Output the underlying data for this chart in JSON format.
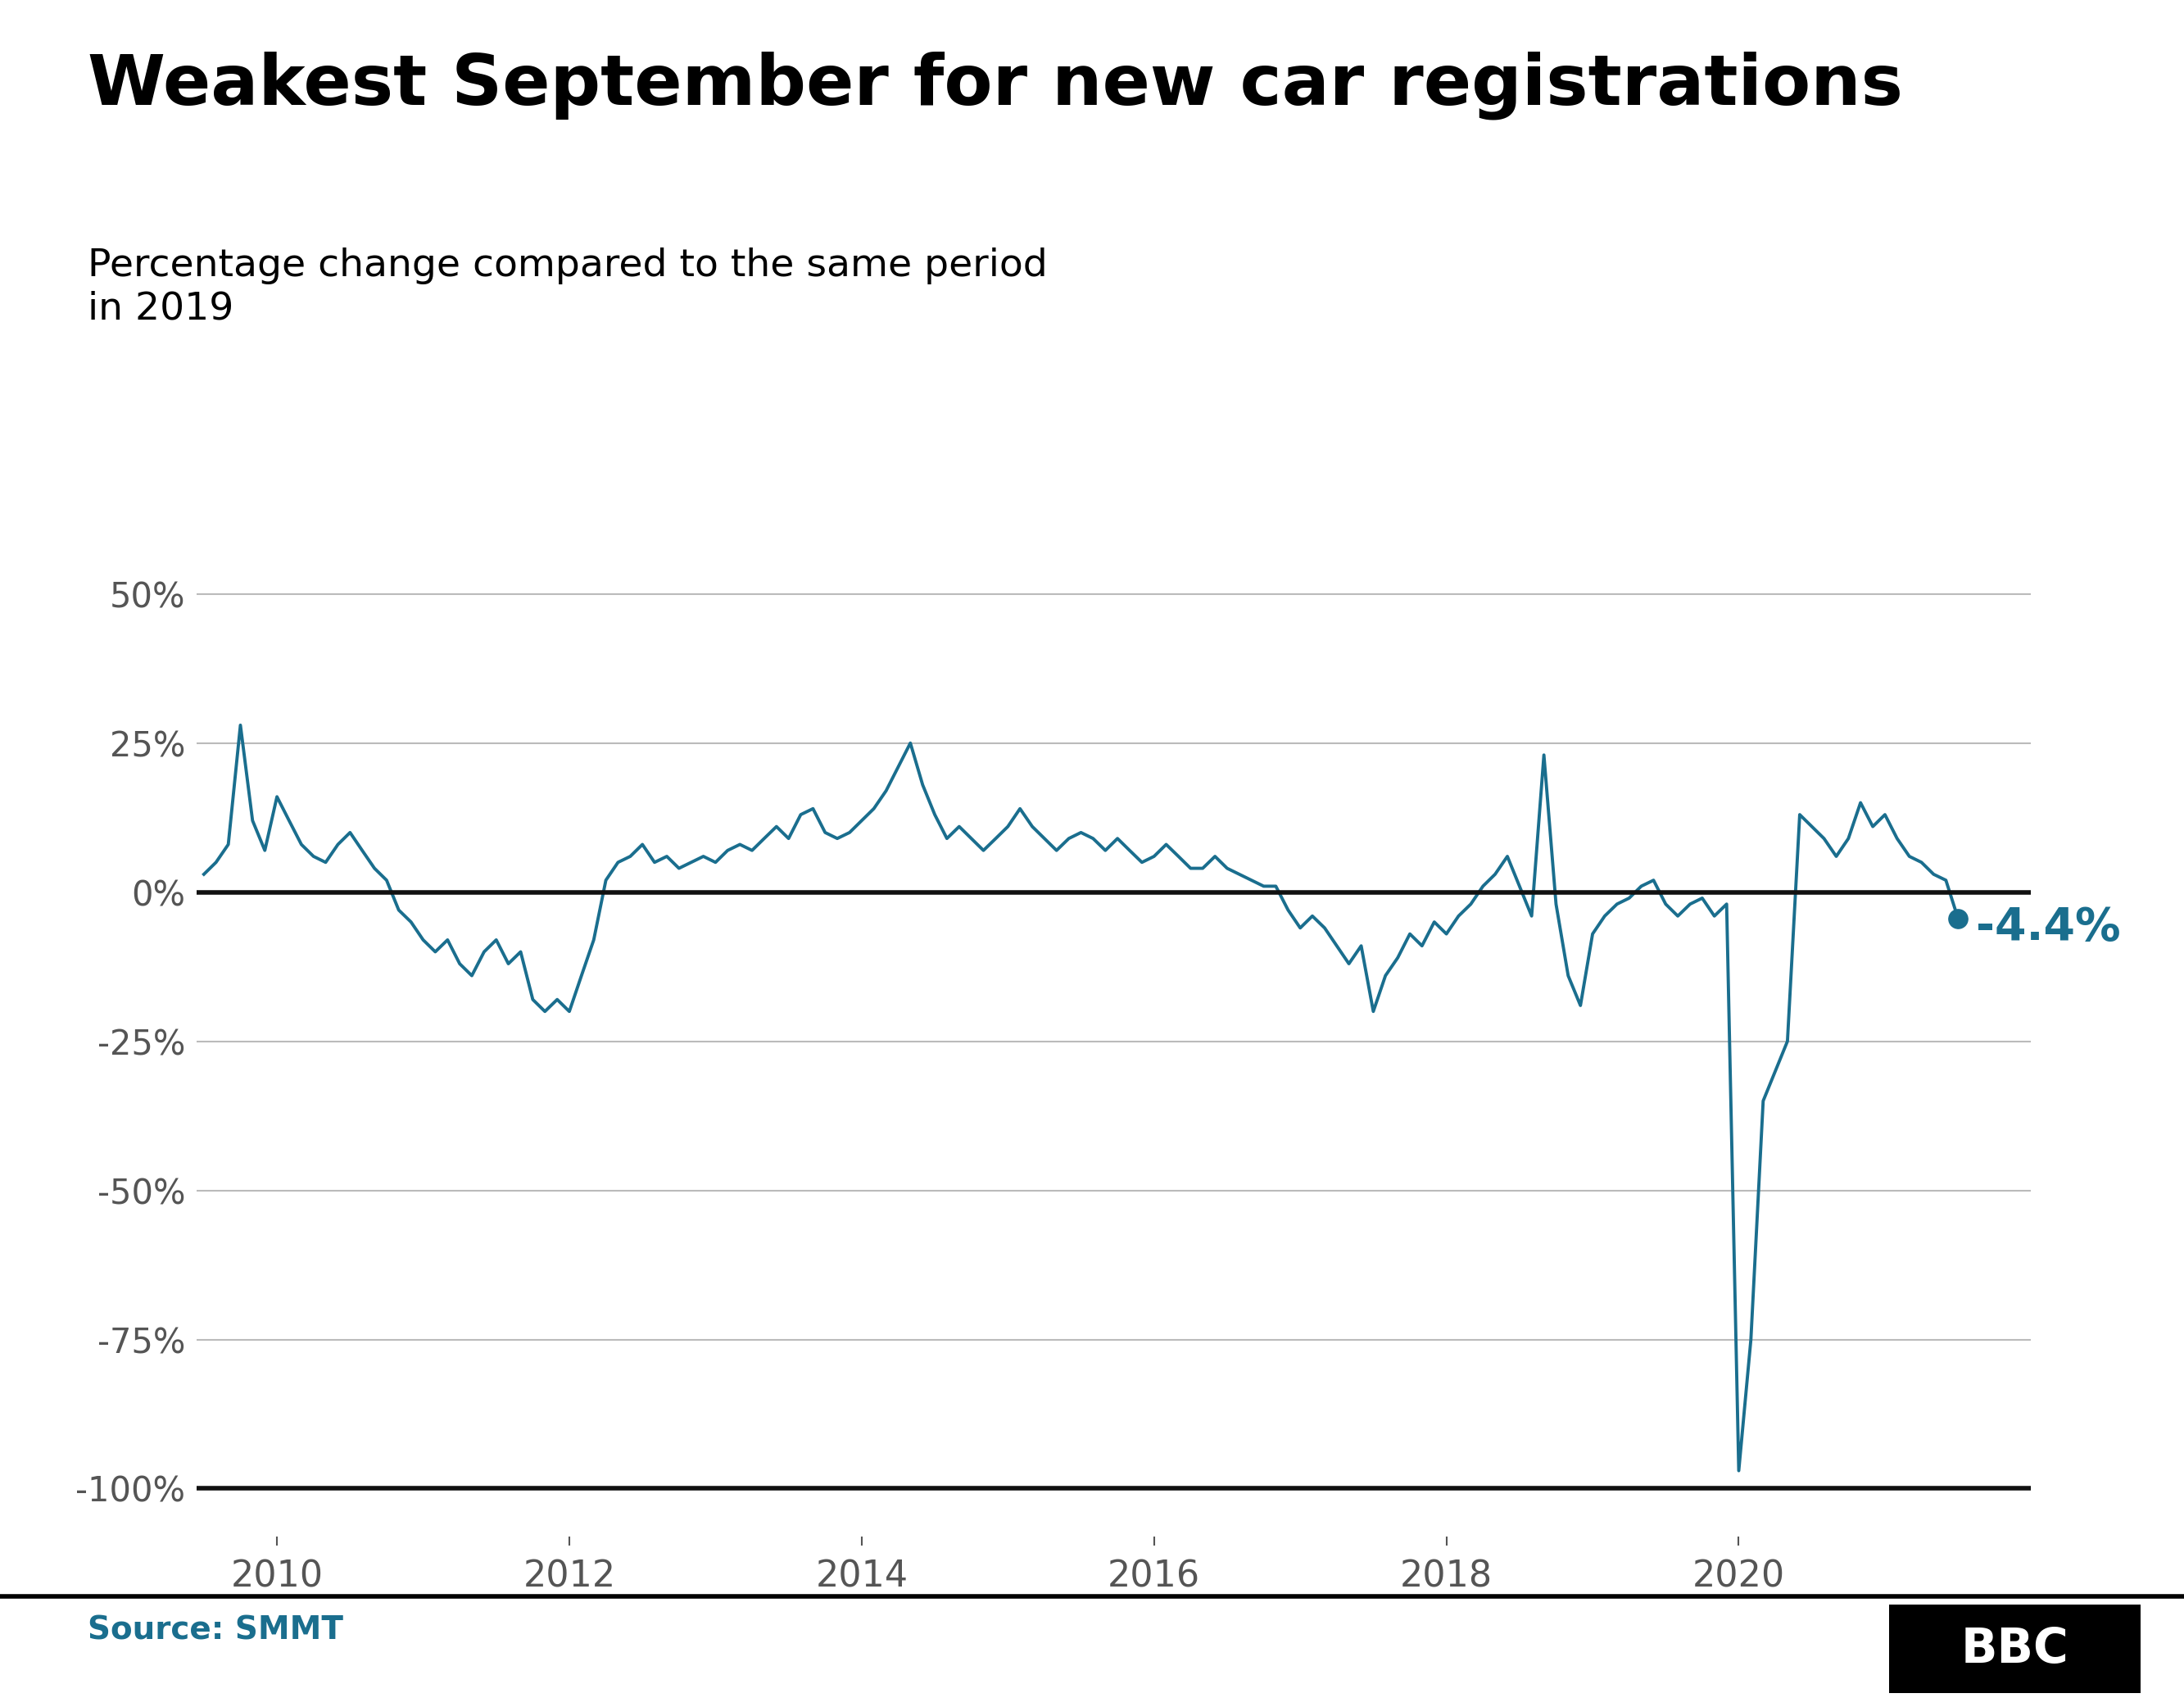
{
  "title": "Weakest September for new car registrations",
  "subtitle": "Percentage change compared to the same period\nin 2019",
  "source": "Source: SMMT",
  "line_color": "#1a6e8e",
  "zero_line_color": "#111111",
  "grid_color": "#bbbbbb",
  "background_color": "#ffffff",
  "annotation_value": "-4.4%",
  "annotation_color": "#1a6e8e",
  "ylim": [
    -108,
    58
  ],
  "yticks": [
    50,
    25,
    0,
    -25,
    -50,
    -75,
    -100
  ],
  "xlabel_years": [
    2010,
    2012,
    2014,
    2016,
    2018,
    2020
  ],
  "xlim": [
    2009.45,
    2022.0
  ],
  "x_values": [
    2009.5,
    2009.583,
    2009.667,
    2009.75,
    2009.833,
    2009.917,
    2010.0,
    2010.083,
    2010.167,
    2010.25,
    2010.333,
    2010.417,
    2010.5,
    2010.583,
    2010.667,
    2010.75,
    2010.833,
    2010.917,
    2011.0,
    2011.083,
    2011.167,
    2011.25,
    2011.333,
    2011.417,
    2011.5,
    2011.583,
    2011.667,
    2011.75,
    2011.833,
    2011.917,
    2012.0,
    2012.083,
    2012.167,
    2012.25,
    2012.333,
    2012.417,
    2012.5,
    2012.583,
    2012.667,
    2012.75,
    2012.833,
    2012.917,
    2013.0,
    2013.083,
    2013.167,
    2013.25,
    2013.333,
    2013.417,
    2013.5,
    2013.583,
    2013.667,
    2013.75,
    2013.833,
    2013.917,
    2014.0,
    2014.083,
    2014.167,
    2014.25,
    2014.333,
    2014.417,
    2014.5,
    2014.583,
    2014.667,
    2014.75,
    2014.833,
    2014.917,
    2015.0,
    2015.083,
    2015.167,
    2015.25,
    2015.333,
    2015.417,
    2015.5,
    2015.583,
    2015.667,
    2015.75,
    2015.833,
    2015.917,
    2016.0,
    2016.083,
    2016.167,
    2016.25,
    2016.333,
    2016.417,
    2016.5,
    2016.583,
    2016.667,
    2016.75,
    2016.833,
    2016.917,
    2017.0,
    2017.083,
    2017.167,
    2017.25,
    2017.333,
    2017.417,
    2017.5,
    2017.583,
    2017.667,
    2017.75,
    2017.833,
    2017.917,
    2018.0,
    2018.083,
    2018.167,
    2018.25,
    2018.333,
    2018.417,
    2018.5,
    2018.583,
    2018.667,
    2018.75,
    2018.833,
    2018.917,
    2019.0,
    2019.083,
    2019.167,
    2019.25,
    2019.333,
    2019.417,
    2019.5,
    2019.583,
    2019.667,
    2019.75,
    2019.833,
    2019.917,
    2020.0,
    2020.083,
    2020.167,
    2020.25,
    2020.333,
    2020.417,
    2020.5,
    2020.583,
    2020.667,
    2020.75,
    2020.833,
    2020.917,
    2021.0,
    2021.083,
    2021.167,
    2021.25,
    2021.333,
    2021.417,
    2021.5
  ],
  "y_values": [
    3,
    5,
    8,
    28,
    12,
    7,
    16,
    12,
    8,
    6,
    5,
    8,
    10,
    7,
    4,
    2,
    -3,
    -5,
    -8,
    -10,
    -8,
    -12,
    -14,
    -10,
    -8,
    -12,
    -10,
    -18,
    -20,
    -18,
    -20,
    -14,
    -8,
    2,
    5,
    6,
    8,
    5,
    6,
    4,
    5,
    6,
    5,
    7,
    8,
    7,
    9,
    11,
    9,
    13,
    14,
    10,
    9,
    10,
    12,
    14,
    17,
    21,
    25,
    18,
    13,
    9,
    11,
    9,
    7,
    9,
    11,
    14,
    11,
    9,
    7,
    9,
    10,
    9,
    7,
    9,
    7,
    5,
    6,
    8,
    6,
    4,
    4,
    6,
    4,
    3,
    2,
    1,
    1,
    -3,
    -6,
    -4,
    -6,
    -9,
    -12,
    -9,
    -20,
    -14,
    -11,
    -7,
    -9,
    -5,
    -7,
    -4,
    -2,
    1,
    3,
    6,
    1,
    -4,
    23,
    -2,
    -14,
    -19,
    -7,
    -4,
    -2,
    -1,
    1,
    2,
    -2,
    -4,
    -2,
    -1,
    -4,
    -2,
    -97,
    -75,
    -35,
    -30,
    -25,
    13,
    11,
    9,
    6,
    9,
    15,
    11,
    13,
    9,
    6,
    5,
    3,
    2,
    -4.4
  ],
  "last_point_x": 2021.5,
  "last_point_y": -4.4
}
